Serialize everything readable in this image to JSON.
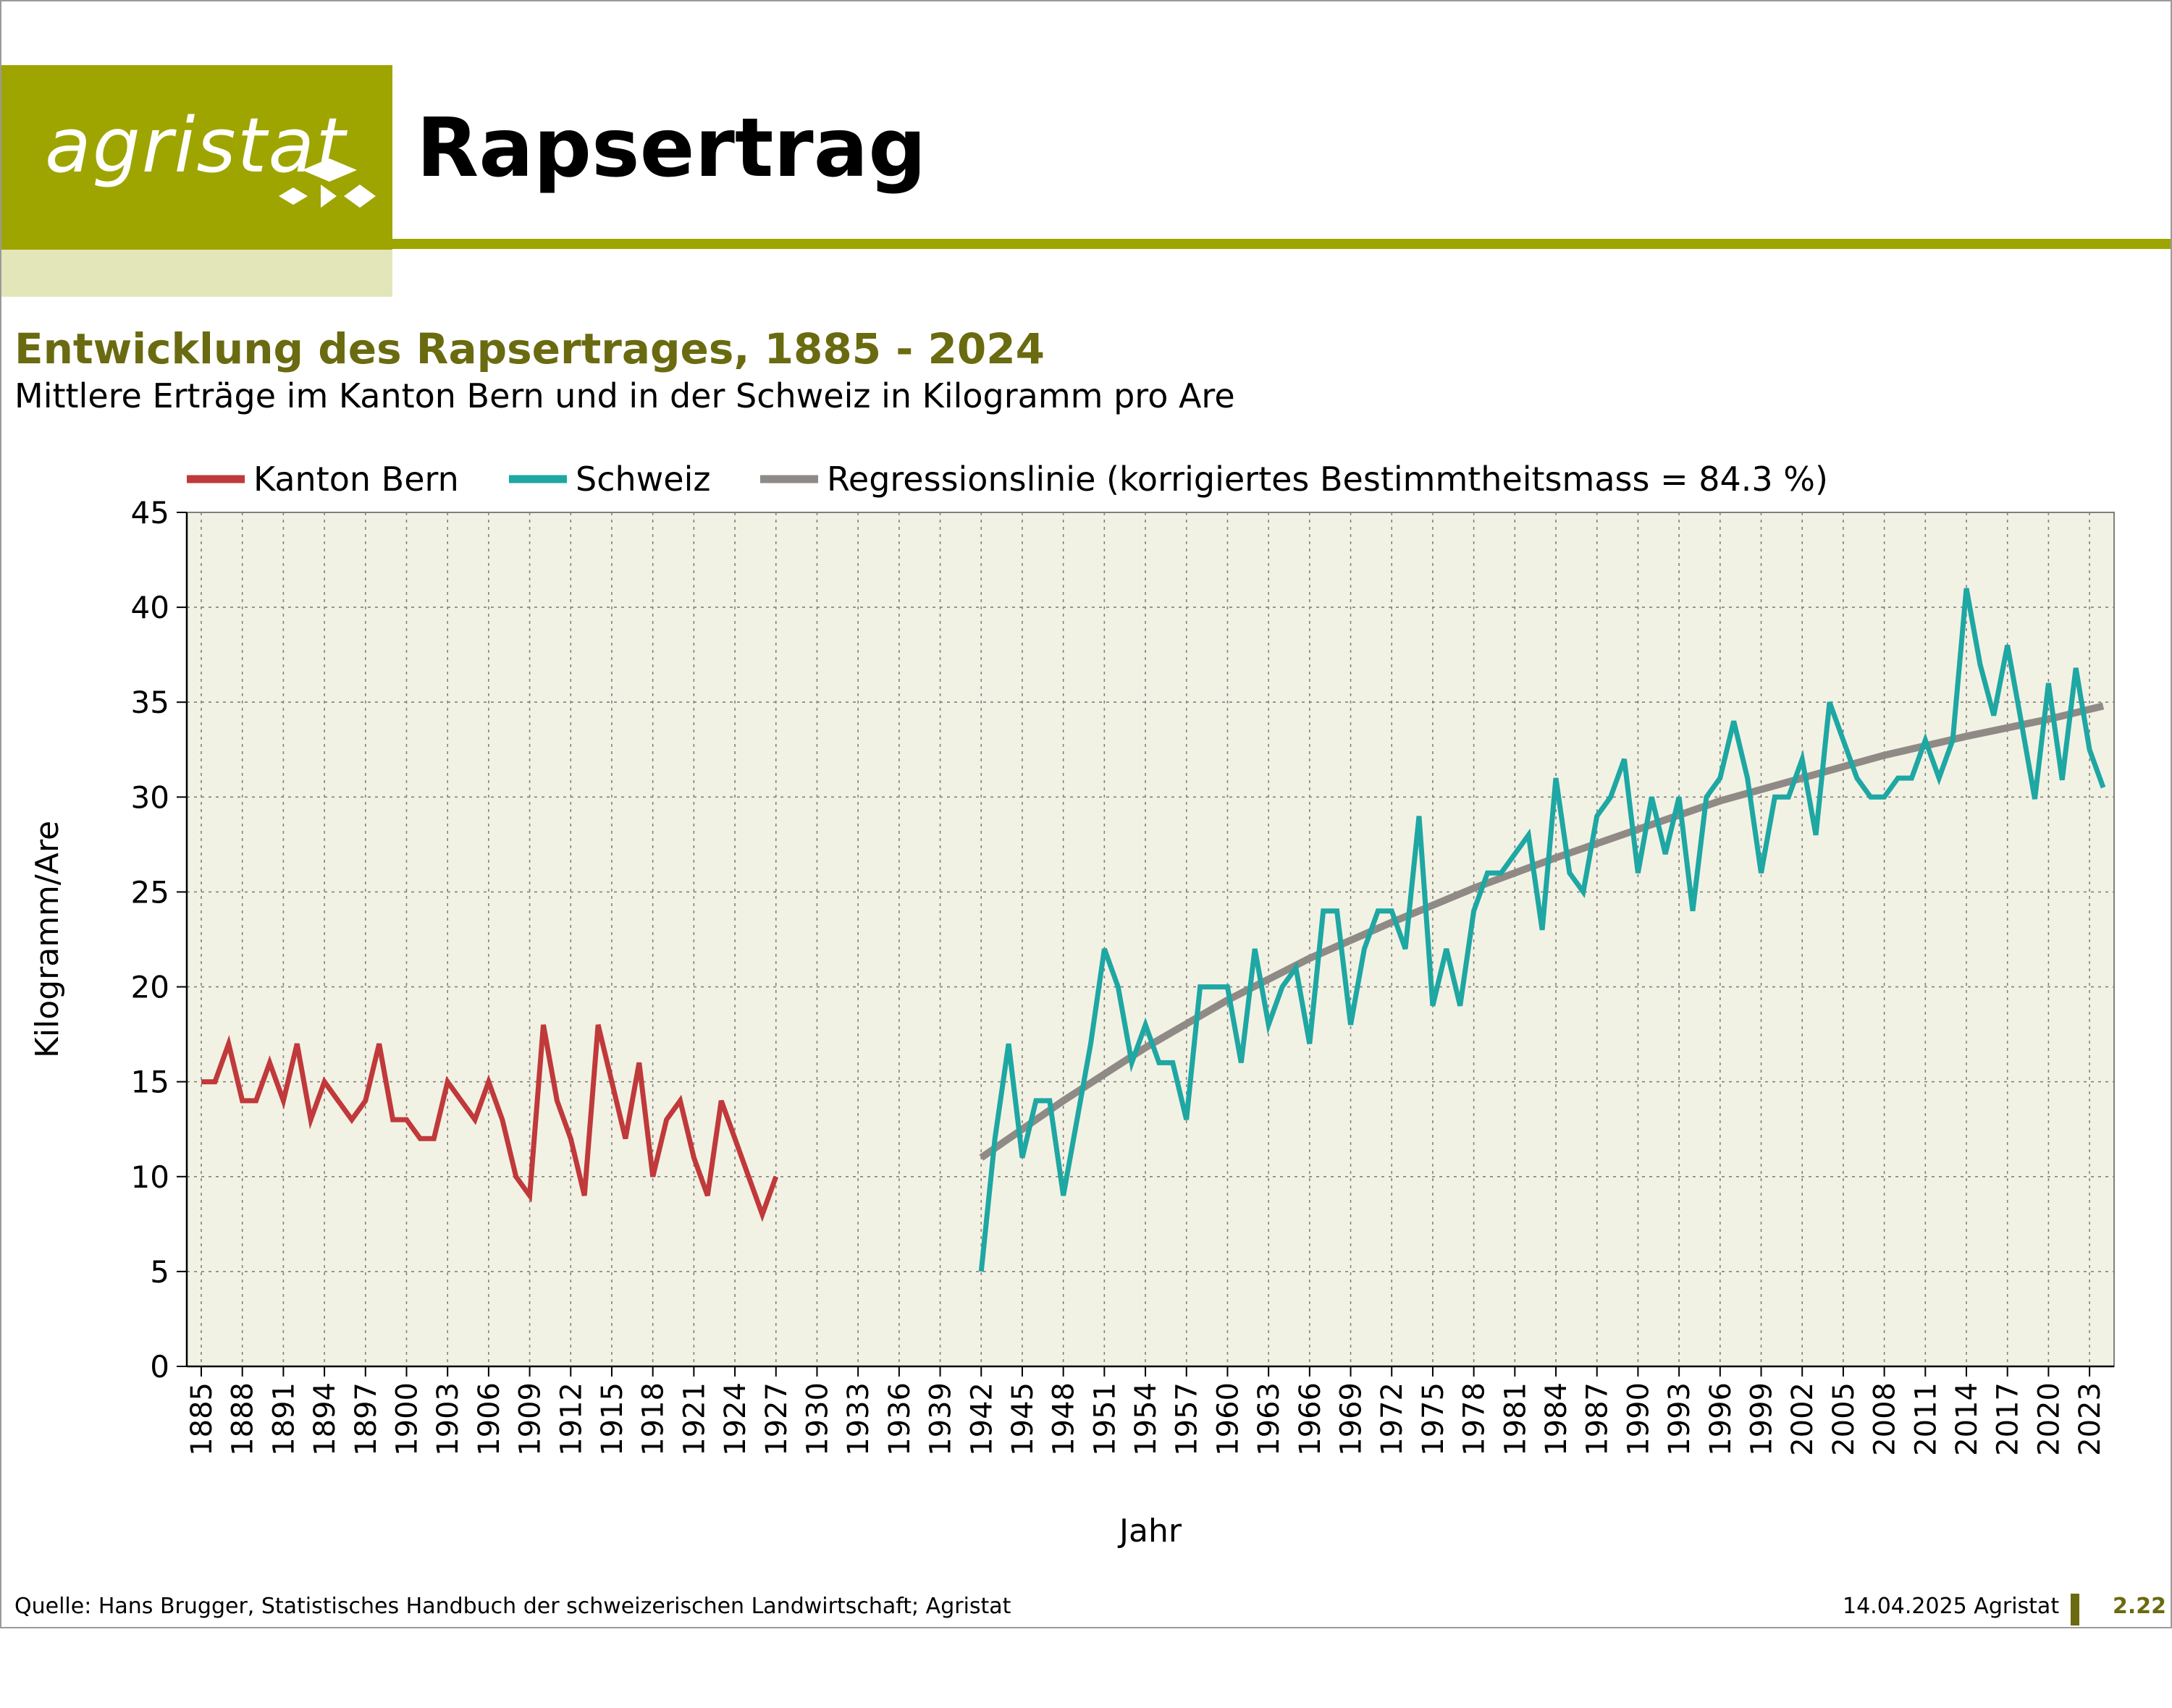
{
  "brand": {
    "name": "agristat",
    "color": "#9ea500"
  },
  "header": {
    "title": "Rapsertrag"
  },
  "chart": {
    "title": "Entwicklung des Rapsertrages, 1885 - 2024",
    "subtitle": "Mittlere Erträge im Kanton Bern und in der Schweiz in Kilogramm pro Are"
  },
  "footer": {
    "source": "Quelle: Hans Brugger, Statistisches Handbuch der schweizerischen Landwirtschaft; Agristat",
    "date": "14.04.2025 Agristat",
    "page": "2.22"
  },
  "chart_data": {
    "type": "line",
    "xlabel": "Jahr",
    "ylabel": "Kilogramm/Are",
    "xlim": [
      1885,
      2024
    ],
    "ylim": [
      0,
      45
    ],
    "yticks": [
      0,
      5,
      10,
      15,
      20,
      25,
      30,
      35,
      40,
      45
    ],
    "xticks": [
      1885,
      1888,
      1891,
      1894,
      1897,
      1900,
      1903,
      1906,
      1909,
      1912,
      1915,
      1918,
      1921,
      1924,
      1927,
      1930,
      1933,
      1936,
      1939,
      1942,
      1945,
      1948,
      1951,
      1954,
      1957,
      1960,
      1963,
      1966,
      1969,
      1972,
      1975,
      1978,
      1981,
      1984,
      1987,
      1990,
      1993,
      1996,
      1999,
      2002,
      2005,
      2008,
      2011,
      2014,
      2017,
      2020,
      2023
    ],
    "grid": true,
    "legend_position": "top",
    "plot_background": "#f2f2e4",
    "series": [
      {
        "name": "Kanton Bern",
        "color": "#c0393b",
        "x": [
          1885,
          1886,
          1887,
          1888,
          1889,
          1890,
          1891,
          1892,
          1893,
          1894,
          1895,
          1896,
          1897,
          1898,
          1899,
          1900,
          1901,
          1902,
          1903,
          1904,
          1905,
          1906,
          1907,
          1908,
          1909,
          1910,
          1911,
          1912,
          1913,
          1914,
          1915,
          1916,
          1917,
          1918,
          1919,
          1920,
          1921,
          1922,
          1923,
          1924,
          1925,
          1926,
          1927
        ],
        "values": [
          15,
          15,
          17,
          14,
          14,
          16,
          14,
          17,
          13,
          15,
          14,
          13,
          14,
          17,
          13,
          13,
          12,
          12,
          15,
          14,
          13,
          15,
          13,
          10,
          9,
          18,
          14,
          12,
          9,
          18,
          15,
          12,
          16,
          10,
          13,
          14,
          11,
          9,
          14,
          12,
          10,
          8,
          10
        ]
      },
      {
        "name": "Schweiz",
        "color": "#1ea7a3",
        "x": [
          1942,
          1943,
          1944,
          1945,
          1946,
          1947,
          1948,
          1949,
          1950,
          1951,
          1952,
          1953,
          1954,
          1955,
          1956,
          1957,
          1958,
          1959,
          1960,
          1961,
          1962,
          1963,
          1964,
          1965,
          1966,
          1967,
          1968,
          1969,
          1970,
          1971,
          1972,
          1973,
          1974,
          1975,
          1976,
          1977,
          1978,
          1979,
          1980,
          1981,
          1982,
          1983,
          1984,
          1985,
          1986,
          1987,
          1988,
          1989,
          1990,
          1991,
          1992,
          1993,
          1994,
          1995,
          1996,
          1997,
          1998,
          1999,
          2000,
          2001,
          2002,
          2003,
          2004,
          2005,
          2006,
          2007,
          2008,
          2009,
          2010,
          2011,
          2012,
          2013,
          2014,
          2015,
          2016,
          2017,
          2018,
          2019,
          2020,
          2021,
          2022,
          2023,
          2024
        ],
        "values": [
          5,
          12,
          17,
          11,
          14,
          14,
          9,
          13,
          17,
          22,
          20,
          16,
          18,
          16,
          16,
          13,
          20,
          20,
          20,
          16,
          22,
          18,
          20,
          21,
          17,
          24,
          24,
          18,
          22,
          24,
          24,
          22,
          29,
          19,
          22,
          19,
          24,
          26,
          26,
          27,
          28,
          23,
          31,
          26,
          25,
          29,
          30,
          32,
          26,
          30,
          27,
          30,
          24,
          30,
          31,
          34,
          31,
          26,
          30,
          30,
          32,
          28,
          35,
          33,
          31,
          30,
          30,
          31,
          31,
          33,
          31,
          33,
          41,
          37,
          34.3,
          38,
          34,
          29.9,
          36,
          30.9,
          36.8,
          32.5,
          30.5
        ]
      },
      {
        "name": "Regressionslinie (korrigiertes Bestimmtheitsmass = 84.3 %)",
        "color": "#8f8a86",
        "x": [
          1942,
          1948,
          1954,
          1960,
          1966,
          1972,
          1978,
          1984,
          1990,
          1996,
          2002,
          2008,
          2014,
          2020,
          2024
        ],
        "values": [
          11,
          14,
          16.8,
          19.3,
          21.5,
          23.4,
          25.2,
          26.8,
          28.3,
          29.8,
          31,
          32.2,
          33.2,
          34.1,
          34.8
        ]
      }
    ]
  }
}
